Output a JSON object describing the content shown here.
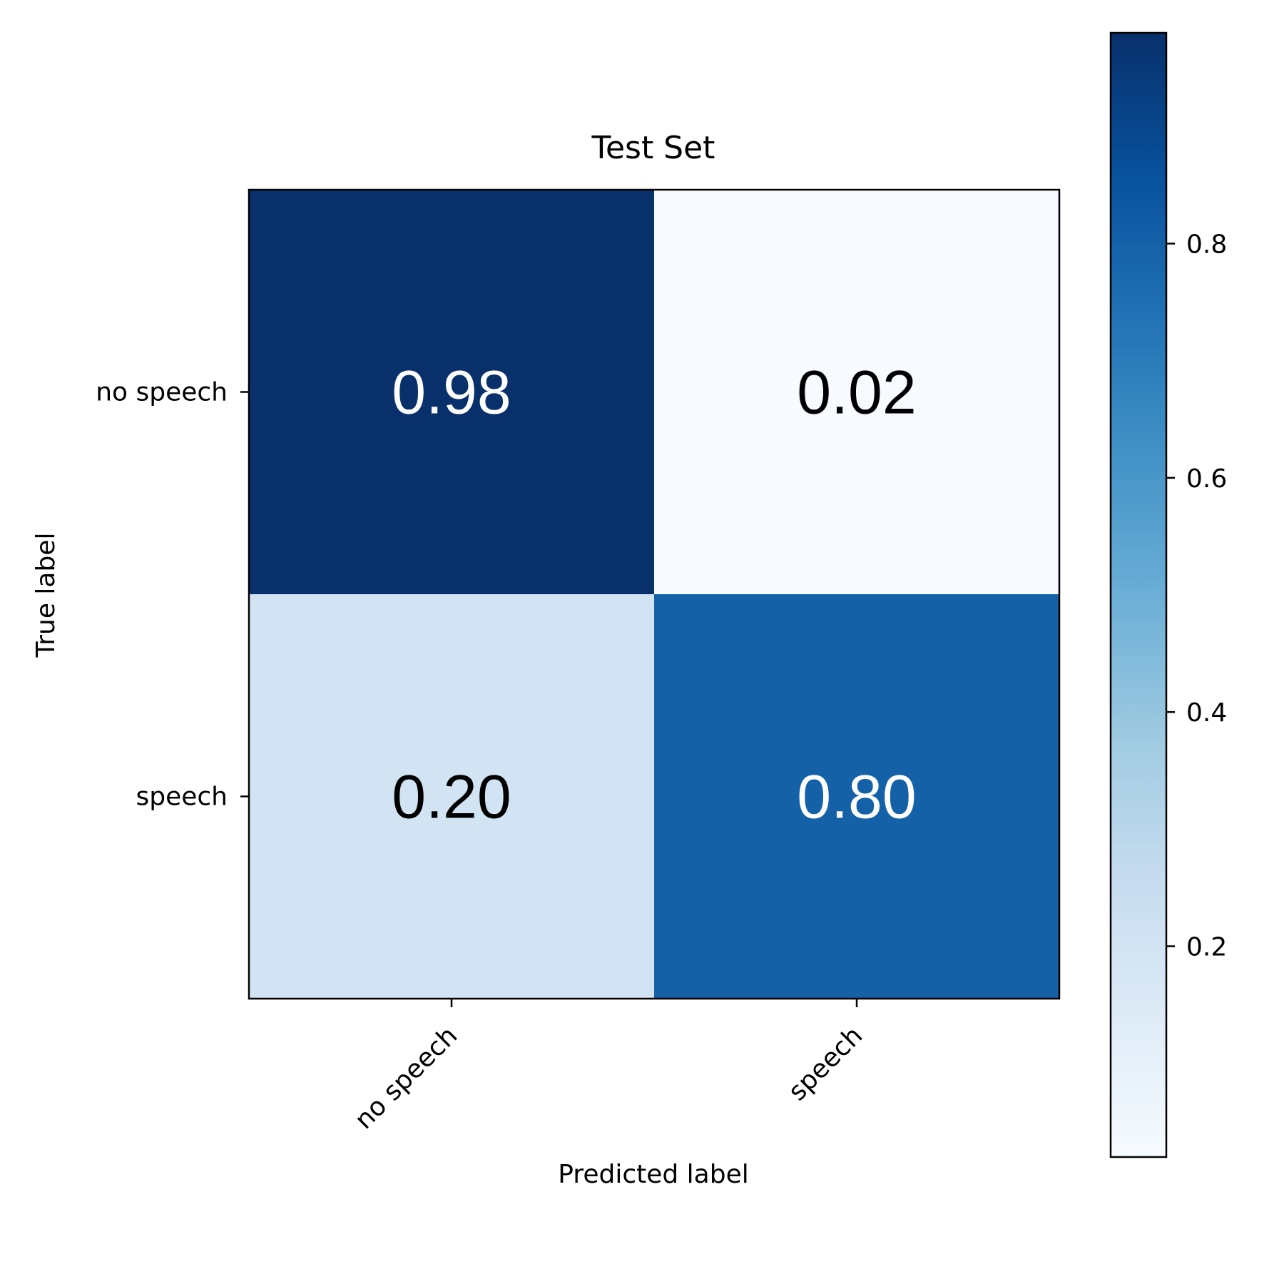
{
  "chart_data": {
    "type": "heatmap",
    "title": "Test Set",
    "xlabel": "Predicted label",
    "ylabel": "True label",
    "x_categories": [
      "no speech",
      "speech"
    ],
    "y_categories": [
      "no speech",
      "speech"
    ],
    "values": [
      [
        0.98,
        0.02
      ],
      [
        0.2,
        0.8
      ]
    ],
    "value_labels": [
      [
        "0.98",
        "0.02"
      ],
      [
        "0.20",
        "0.80"
      ]
    ],
    "colormap": "Blues",
    "colorbar": {
      "range": [
        0.02,
        0.98
      ],
      "ticks": [
        0.2,
        0.4,
        0.6,
        0.8
      ],
      "tick_labels": [
        "0.2",
        "0.4",
        "0.6",
        "0.8"
      ]
    },
    "colors": {
      "min": "#f7fbff",
      "max": "#08306b",
      "text_light": "#ffffff",
      "text_dark": "#000000"
    }
  }
}
